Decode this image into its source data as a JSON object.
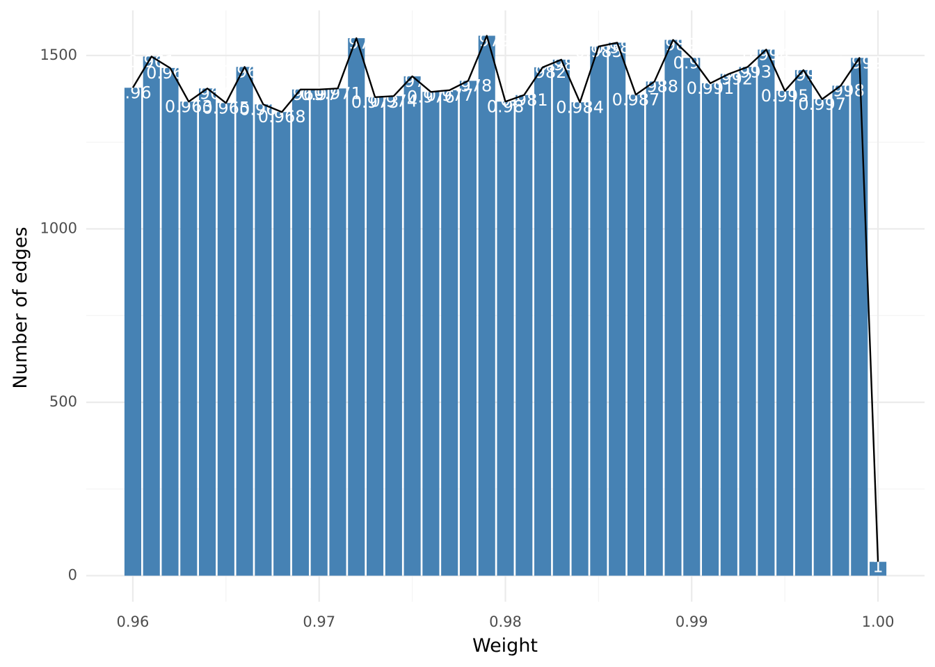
{
  "chart_data": {
    "type": "bar",
    "title": "",
    "xlabel": "Weight",
    "ylabel": "Number of edges",
    "xlim": [
      0.9575,
      1.0025
    ],
    "ylim": [
      -75,
      1630
    ],
    "x_ticks": [
      0.96,
      0.97,
      0.98,
      0.99,
      1.0
    ],
    "x_tick_labels": [
      "0.96",
      "0.97",
      "0.98",
      "0.99",
      "1.00"
    ],
    "y_ticks": [
      0,
      500,
      1000,
      1500
    ],
    "y_tick_labels": [
      "0",
      "500",
      "1000",
      "1500"
    ],
    "grid": true,
    "legend": "none",
    "bar_color": "#4682b4",
    "line_color": "#000000",
    "x": [
      0.96,
      0.961,
      0.962,
      0.963,
      0.964,
      0.965,
      0.966,
      0.967,
      0.968,
      0.969,
      0.97,
      0.971,
      0.972,
      0.973,
      0.974,
      0.975,
      0.976,
      0.977,
      0.978,
      0.979,
      0.98,
      0.981,
      0.982,
      0.983,
      0.984,
      0.985,
      0.986,
      0.987,
      0.988,
      0.989,
      0.99,
      0.991,
      0.992,
      0.993,
      0.994,
      0.995,
      0.996,
      0.997,
      0.998,
      0.999,
      1.0
    ],
    "values": [
      1407,
      1497,
      1464,
      1367,
      1405,
      1363,
      1467,
      1359,
      1337,
      1402,
      1402,
      1405,
      1550,
      1380,
      1383,
      1440,
      1395,
      1400,
      1427,
      1557,
      1367,
      1386,
      1466,
      1488,
      1365,
      1526,
      1537,
      1387,
      1425,
      1545,
      1493,
      1420,
      1447,
      1467,
      1517,
      1398,
      1458,
      1374,
      1413,
      1493,
      40
    ],
    "labels": [
      "0.96",
      "0.961",
      "0.962",
      "0.963",
      "0.964",
      "0.965",
      "0.966",
      "0.967",
      "0.968",
      "0.969",
      "0.97",
      "0.971",
      "0.972",
      "0.973",
      "0.974",
      "0.975",
      "0.976",
      "0.977",
      "0.978",
      "0.979",
      "0.98",
      "0.981",
      "0.982",
      "0.983",
      "0.984",
      "0.985",
      "0.986",
      "0.987",
      "0.988",
      "0.989",
      "0.99",
      "0.991",
      "0.992",
      "0.993",
      "0.994",
      "0.995",
      "0.996",
      "0.997",
      "0.998",
      "0.999",
      "1"
    ]
  }
}
